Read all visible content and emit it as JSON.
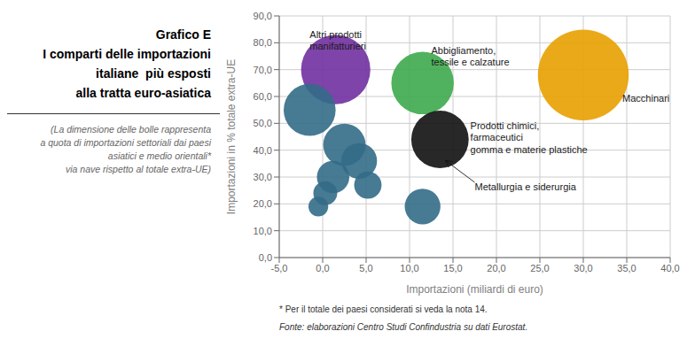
{
  "chart_data": {
    "type": "scatter",
    "title": "Grafico E\nI comparti delle importazioni\nitaliane  più esposti\nalla tratta euro-asiatica",
    "subtitle": "(La dimensione delle bolle rappresenta\na quota di importazioni settoriali dai paesi\nasiatici e medio orientali*\nvia nave rispetto al totale extra-UE)",
    "xlabel": "Importazioni (miliardi di euro)",
    "ylabel": "Importazioni in % totale extra-UE",
    "footnotes": [
      "* Per il totale dei paesi considerati si veda la nota 14.",
      "Fonte: elaborazioni Centro Studi Confindustria su dati Eurostat."
    ],
    "x": [
      1.5,
      -1.5,
      2.5,
      1.2,
      0.3,
      -0.5,
      4.2,
      5.2,
      11.5,
      13.5,
      11.5,
      30.0
    ],
    "values": [
      70,
      55,
      42,
      30,
      24,
      19,
      36,
      27,
      65,
      44,
      19,
      68
    ],
    "sizes": [
      3200,
      1800,
      1200,
      700,
      380,
      260,
      850,
      500,
      2600,
      2200,
      850,
      5500
    ],
    "colors": [
      "#7030a0",
      "#336b87",
      "#336b87",
      "#336b87",
      "#336b87",
      "#336b87",
      "#336b87",
      "#336b87",
      "#3daa4c",
      "#111111",
      "#336b87",
      "#e8a000"
    ],
    "xlim": [
      -5,
      40
    ],
    "ylim": [
      0,
      90
    ],
    "xticks": [
      {
        "value": -5,
        "label": "-5,0"
      },
      {
        "value": 0,
        "label": "0,0"
      },
      {
        "value": 5,
        "label": "5,0"
      },
      {
        "value": 10,
        "label": "10,0"
      },
      {
        "value": 15,
        "label": "15,0"
      },
      {
        "value": 20,
        "label": "20,0"
      },
      {
        "value": 25,
        "label": "25,0"
      },
      {
        "value": 30,
        "label": "30,0"
      },
      {
        "value": 35,
        "label": "35,0"
      },
      {
        "value": 40,
        "label": "40,0"
      }
    ],
    "yticks": [
      {
        "value": 0,
        "label": "0,0"
      },
      {
        "value": 10,
        "label": "10,0"
      },
      {
        "value": 20,
        "label": "20,0"
      },
      {
        "value": 30,
        "label": "30,0"
      },
      {
        "value": 40,
        "label": "40,0"
      },
      {
        "value": 50,
        "label": "50,0"
      },
      {
        "value": 60,
        "label": "60,0"
      },
      {
        "value": 70,
        "label": "70,0"
      },
      {
        "value": 80,
        "label": "80,0"
      },
      {
        "value": 90,
        "label": "90,0"
      }
    ],
    "grid": true,
    "annotations": [
      {
        "text": "Altri prodotti\nmanifatturieri",
        "x": -1.5,
        "y": 85
      },
      {
        "text": "Abbigliamento,\ntessile e calzature",
        "x": 12.5,
        "y": 79
      },
      {
        "text": "Prodotti chimici,\nfarmaceutici\ngomma e materie plastiche",
        "x": 17.0,
        "y": 51
      },
      {
        "text": "Macchinari",
        "x": 34.5,
        "y": 61
      },
      {
        "text": "Metallurgia e siderurgia",
        "x": 17.5,
        "y": 28,
        "arrow_x": 14.2,
        "arrow_y": 36
      }
    ]
  }
}
